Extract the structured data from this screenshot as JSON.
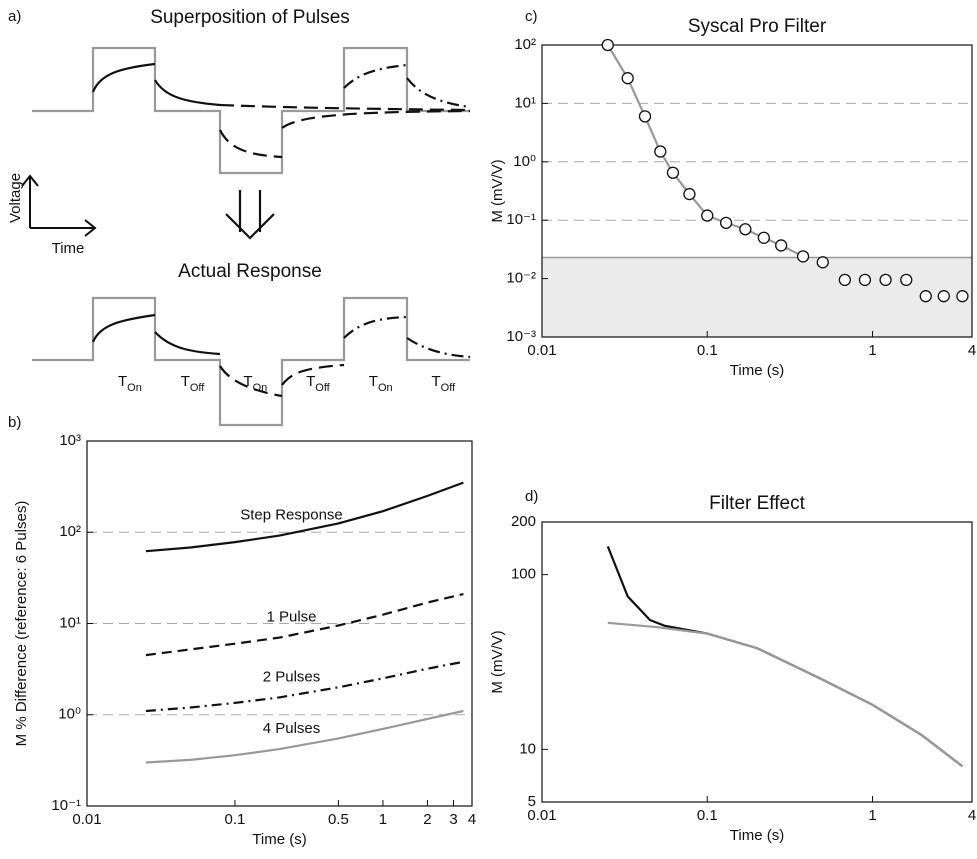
{
  "panel_a": {
    "panel_label": "a)",
    "title_top": "Superposition of Pulses",
    "axis_y": "Voltage",
    "axis_x": "Time",
    "title_bottom": "Actual Response",
    "pulse_labels": [
      {
        "main": "T",
        "sub": "On"
      },
      {
        "main": "T",
        "sub": "Off"
      },
      {
        "main": "T",
        "sub": "On"
      },
      {
        "main": "T",
        "sub": "Off"
      },
      {
        "main": "T",
        "sub": "On"
      },
      {
        "main": "T",
        "sub": "Off"
      }
    ]
  },
  "chart_data": [
    {
      "type": "line",
      "panel_label": "b)",
      "y_label": "M % Difference (reference: 6 Pulses)",
      "x_label": "Time (s)",
      "xscale": "log",
      "yscale": "log",
      "grid": true,
      "xlim": [
        0.01,
        4
      ],
      "xticks": [
        0.01,
        0.1,
        0.5,
        1,
        2,
        3,
        4
      ],
      "ylim": [
        0.1,
        1000
      ],
      "yticks": [
        {
          "value": 0.1,
          "label": "10⁻¹"
        },
        {
          "value": 1,
          "label": "10⁰"
        },
        {
          "value": 10,
          "label": "10¹"
        },
        {
          "value": 100,
          "label": "10²"
        },
        {
          "value": 1000,
          "label": "10³"
        }
      ],
      "series": [
        {
          "name": "Step Response",
          "color": "#111111",
          "dash": "solid",
          "x": [
            0.025,
            0.05,
            0.1,
            0.2,
            0.5,
            1,
            2,
            3.5
          ],
          "values": [
            62,
            68,
            78,
            92,
            125,
            170,
            250,
            350
          ]
        },
        {
          "name": "1 Pulse",
          "color": "#111111",
          "dash": "dashed",
          "x": [
            0.025,
            0.05,
            0.1,
            0.2,
            0.5,
            1,
            2,
            3.5
          ],
          "values": [
            4.5,
            5.2,
            6,
            7,
            9.5,
            12.5,
            17,
            21
          ]
        },
        {
          "name": "2 Pulses",
          "color": "#111111",
          "dash": "dashdot",
          "x": [
            0.025,
            0.05,
            0.1,
            0.2,
            0.5,
            1,
            2,
            3.5
          ],
          "values": [
            1.1,
            1.2,
            1.35,
            1.55,
            2,
            2.5,
            3.2,
            3.8
          ]
        },
        {
          "name": "4 Pulses",
          "color": "#999999",
          "dash": "solid",
          "x": [
            0.025,
            0.05,
            0.1,
            0.2,
            0.5,
            1,
            2,
            3.5
          ],
          "values": [
            0.3,
            0.32,
            0.36,
            0.42,
            0.55,
            0.7,
            0.9,
            1.1
          ]
        }
      ]
    },
    {
      "type": "line",
      "panel_label": "c)",
      "title": "Syscal Pro Filter",
      "y_label": "M (mV/V)",
      "x_label": "Time (s)",
      "xscale": "log",
      "yscale": "log",
      "grid": true,
      "shaded_below": 0.023,
      "xlim": [
        0.01,
        4
      ],
      "xticks": [
        0.01,
        0.1,
        1,
        4
      ],
      "ylim": [
        0.001,
        100
      ],
      "yticks": [
        {
          "value": 0.001,
          "label": "10⁻³"
        },
        {
          "value": 0.01,
          "label": "10⁻²"
        },
        {
          "value": 0.1,
          "label": "10⁻¹"
        },
        {
          "value": 1,
          "label": "10⁰"
        },
        {
          "value": 10,
          "label": "10¹"
        },
        {
          "value": 100,
          "label": "10²"
        }
      ],
      "series": [
        {
          "color": "#999999",
          "dash": "solid",
          "x": [
            0.025,
            0.033,
            0.042,
            0.052,
            0.062,
            0.078,
            0.1,
            0.13,
            0.17,
            0.22,
            0.28,
            0.38
          ],
          "values": [
            100,
            27,
            6,
            1.5,
            0.65,
            0.28,
            0.12,
            0.09,
            0.07,
            0.05,
            0.037,
            0.024
          ]
        },
        {
          "color": "#111111",
          "marker": "circle",
          "x": [
            0.025,
            0.033,
            0.042,
            0.052,
            0.062,
            0.078,
            0.1,
            0.13,
            0.17,
            0.22,
            0.28,
            0.38,
            0.5,
            0.68,
            0.9,
            1.2,
            1.6,
            2.1,
            2.7,
            3.5
          ],
          "values": [
            100,
            27,
            6,
            1.5,
            0.65,
            0.28,
            0.12,
            0.09,
            0.07,
            0.05,
            0.037,
            0.024,
            0.019,
            0.0095,
            0.0095,
            0.0095,
            0.0095,
            0.005,
            0.005,
            0.005
          ]
        }
      ]
    },
    {
      "type": "line",
      "panel_label": "d)",
      "title": "Filter Effect",
      "y_label": "M (mV/V)",
      "x_label": "Time (s)",
      "xscale": "log",
      "yscale": "log",
      "grid": false,
      "xlim": [
        0.01,
        4
      ],
      "xticks": [
        0.01,
        0.1,
        1,
        4
      ],
      "ylim": [
        5,
        200
      ],
      "yticks": [
        5,
        10,
        100,
        200
      ],
      "series": [
        {
          "color": "#111111",
          "dash": "solid",
          "x": [
            0.025,
            0.033,
            0.045,
            0.055,
            0.1,
            0.2,
            0.5,
            1,
            2,
            3.5
          ],
          "values": [
            145,
            75,
            55,
            51,
            46,
            38,
            25,
            18,
            12,
            8
          ]
        },
        {
          "color": "#999999",
          "dash": "solid",
          "x": [
            0.025,
            0.05,
            0.1,
            0.2,
            0.5,
            1,
            2,
            3.5
          ],
          "values": [
            53,
            50,
            46,
            38,
            25,
            18,
            12,
            8
          ]
        }
      ]
    }
  ]
}
